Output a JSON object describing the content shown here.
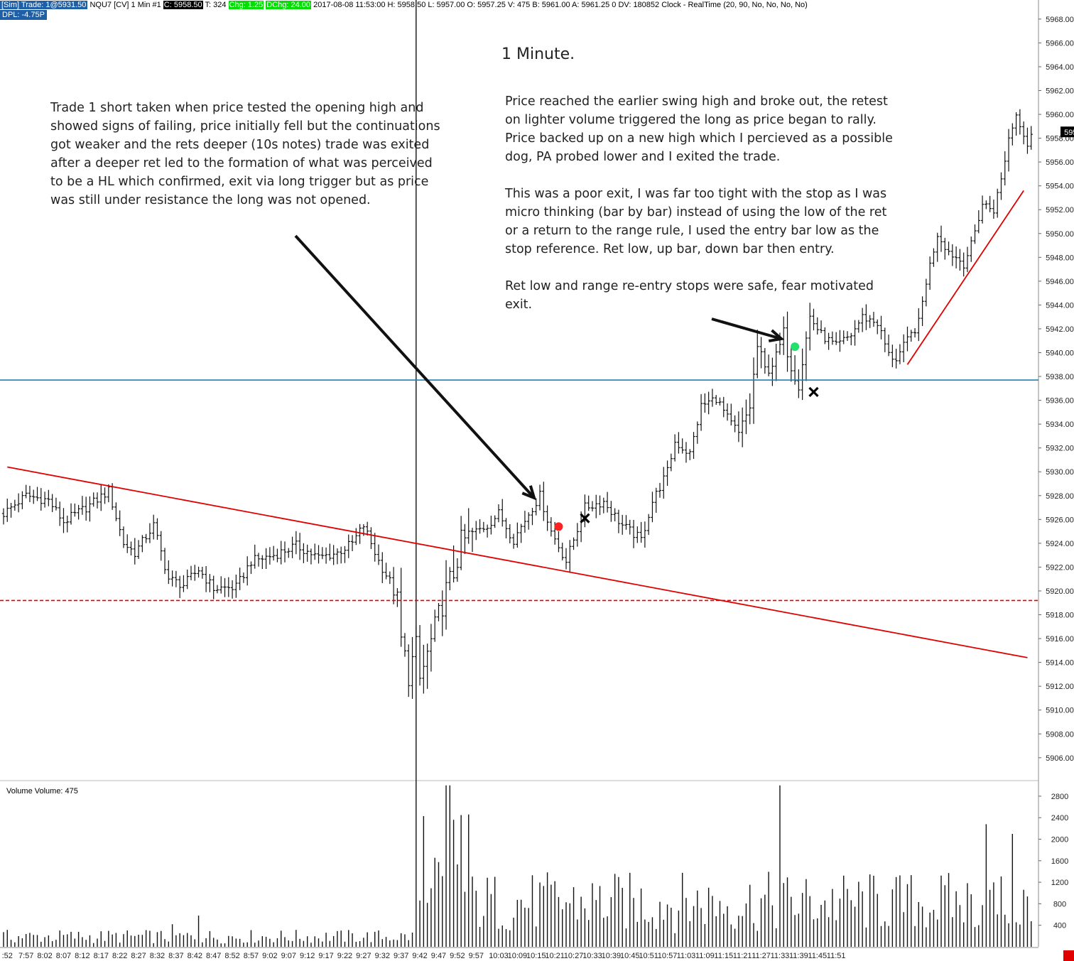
{
  "header": {
    "sim_trade": "[Sim]  Trade: 1@5931.50",
    "symbol": "NQU7 [CV]  1 Min   #1",
    "close": "C: 5958.50",
    "ticks": "T: 324",
    "chg": "Chg: 1.25",
    "dchg": "DChg: 24.00",
    "ohlc": "2017-08-08 11:53:00 H: 5958.50 L: 5957.00 O: 5957.25 V: 475 B: 5961.00 A: 5961.25 0 DV: 180852 Clock - RealTime   (20, 90, No, No, No, No)",
    "dpl": "DPL: -4.75P",
    "colors": {
      "blue_badge": "#1f5fa6",
      "black_badge": "#000000",
      "green_badge": "#00e000"
    }
  },
  "title": "1 Minute.",
  "annotations": {
    "left": "Trade 1 short taken when price tested the opening high and\nshowed signs of failing, price initially fell but the continuations\ngot weaker and the rets deeper (10s notes) trade was exited\nafter a deeper ret led to the formation of what was perceived\nto be a HL which confirmed, exit via long trigger but as price\nwas still under resistance the long was not opened.",
    "right": "Price reached the earlier swing high and broke out, the retest\non lighter volume triggered the long as price began to rally.\nPrice backed up on a new high which I percieved as a possible\ndog, PA probed lower and I exited the trade.\n\nThis was a poor exit, I was far too tight with the stop as I was\nmicro thinking (bar by bar) instead of using the low of the ret\nor a return to the range rule, I used the entry bar low as the\nstop reference.  Ret low, up bar, down bar then entry.\n\nRet low and range re-entry stops were safe, fear motivated\nexit."
  },
  "volume_label": "Volume  Volume: 475",
  "chart_data": {
    "type": "candlestick",
    "symbol": "NQU7",
    "interval": "1 Min",
    "y_ticks": [
      5906,
      5908,
      5910,
      5912,
      5914,
      5916,
      5918,
      5920,
      5922,
      5924,
      5926,
      5928,
      5930,
      5932,
      5934,
      5936,
      5938,
      5940,
      5942,
      5944,
      5946,
      5948,
      5950,
      5952,
      5954,
      5956,
      5958,
      5960,
      5962,
      5964,
      5966,
      5968
    ],
    "ylim": [
      5904.2,
      5969.6
    ],
    "last_price": "5958.50",
    "x_ticks": [
      ":52",
      "7:57",
      "8:02",
      "8:07",
      "8:12",
      "8:17",
      "8:22",
      "8:27",
      "8:32",
      "8:37",
      "8:42",
      "8:47",
      "8:52",
      "8:57",
      "9:02",
      "9:07",
      "9:12",
      "9:17",
      "9:22",
      "9:27",
      "9:32",
      "9:37",
      "9:42",
      "9:47",
      "9:52",
      "9:57",
      "10:03",
      "10:09",
      "10:15",
      "10:21",
      "10:27",
      "10:33",
      "10:39",
      "10:45",
      "10:51",
      "10:57",
      "11:03",
      "11:09",
      "11:15",
      "11:21",
      "11:27",
      "11:33",
      "11:39",
      "11:45",
      "11:51"
    ],
    "price_path": [
      [
        0,
        5926.5
      ],
      [
        6,
        5928
      ],
      [
        12,
        5927.6
      ],
      [
        16,
        5925.8
      ],
      [
        23,
        5927.2
      ],
      [
        28,
        5928.4
      ],
      [
        32,
        5924
      ],
      [
        35,
        5923.2
      ],
      [
        40,
        5925.5
      ],
      [
        44,
        5921
      ],
      [
        48,
        5920.5
      ],
      [
        52,
        5921.8
      ],
      [
        56,
        5920.2
      ],
      [
        62,
        5920.3
      ],
      [
        66,
        5922.5
      ],
      [
        72,
        5923
      ],
      [
        78,
        5923.8
      ],
      [
        84,
        5922.8
      ],
      [
        89,
        5923.2
      ],
      [
        93,
        5924
      ],
      [
        96,
        5925.5
      ],
      [
        100,
        5922.5
      ],
      [
        103,
        5920.8
      ],
      [
        105,
        5919
      ],
      [
        106,
        5915.8
      ],
      [
        108,
        5913
      ],
      [
        110,
        5915.2
      ],
      [
        111,
        5912.5
      ],
      [
        115,
        5916.8
      ],
      [
        118,
        5920
      ],
      [
        120,
        5921.5
      ],
      [
        122,
        5924
      ],
      [
        126,
        5925
      ],
      [
        129,
        5925.5
      ],
      [
        132,
        5926.5
      ],
      [
        136,
        5924.3
      ],
      [
        140,
        5926.5
      ],
      [
        143,
        5928
      ],
      [
        146,
        5925
      ],
      [
        150,
        5922.5
      ],
      [
        155,
        5927
      ],
      [
        160,
        5927.5
      ],
      [
        165,
        5925.5
      ],
      [
        170,
        5924.3
      ],
      [
        173,
        5927.5
      ],
      [
        177,
        5930
      ],
      [
        179,
        5932.5
      ],
      [
        183,
        5931.5
      ],
      [
        186,
        5935.5
      ],
      [
        190,
        5936.2
      ],
      [
        193,
        5934.5
      ],
      [
        196,
        5933
      ],
      [
        199,
        5935.5
      ],
      [
        201,
        5940.5
      ],
      [
        203,
        5938.5
      ],
      [
        206,
        5939.5
      ],
      [
        208,
        5941.5
      ],
      [
        210,
        5939
      ],
      [
        212,
        5937.5
      ],
      [
        215,
        5943
      ],
      [
        218,
        5941.5
      ],
      [
        222,
        5940.5
      ],
      [
        226,
        5941.5
      ],
      [
        229,
        5943
      ],
      [
        233,
        5942.5
      ],
      [
        236,
        5939.8
      ],
      [
        238,
        5939.5
      ],
      [
        241,
        5941
      ],
      [
        244,
        5942.5
      ],
      [
        246,
        5946
      ],
      [
        249,
        5950
      ],
      [
        252,
        5948.5
      ],
      [
        256,
        5947.5
      ],
      [
        258,
        5949
      ],
      [
        261,
        5952.5
      ],
      [
        264,
        5952
      ],
      [
        266,
        5954.5
      ],
      [
        268,
        5958
      ],
      [
        270,
        5960
      ],
      [
        272,
        5958.5
      ],
      [
        273,
        5957.5
      ],
      [
        274,
        5958.5
      ]
    ],
    "volume": {
      "y_ticks": [
        400,
        800,
        1200,
        1600,
        2000,
        2400,
        2800
      ],
      "ylim": [
        0,
        3050
      ],
      "last": 475
    },
    "horizontal_lines": [
      {
        "price": 5937.7,
        "color": "#1f7fb8",
        "style": "solid"
      },
      {
        "price": 5919.2,
        "color": "#e00000",
        "style": "dashed"
      }
    ],
    "trend_lines": [
      {
        "from": [
          1,
          5930.4
        ],
        "to": [
          273,
          5914.4
        ],
        "color": "#e00000"
      },
      {
        "from": [
          241,
          5939
        ],
        "to": [
          272,
          5953.6
        ],
        "color": "#e00000"
      }
    ],
    "markers": [
      {
        "type": "dot",
        "color": "#ff2020",
        "bar": 148,
        "price": 5925.4
      },
      {
        "type": "x",
        "color": "#000000",
        "bar": 155,
        "price": 5926.1
      },
      {
        "type": "dot",
        "color": "#22e06a",
        "bar": 211,
        "price": 5940.5
      },
      {
        "type": "x",
        "color": "#000000",
        "bar": 216,
        "price": 5936.7
      }
    ]
  }
}
